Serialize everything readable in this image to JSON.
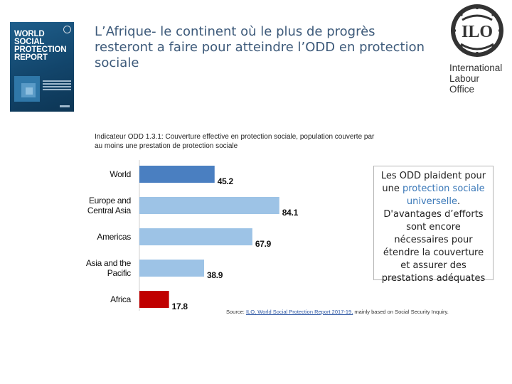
{
  "header": {
    "title": "L’Afrique- le continent où le plus de progrès resteront a faire pour atteindre l’ODD en protection sociale"
  },
  "report_cover": {
    "title_lines": [
      "WORLD",
      "SOCIAL",
      "PROTECTION",
      "REPORT"
    ]
  },
  "logo": {
    "emblem_text": "ILO",
    "org_lines": [
      "International",
      "Labour",
      "Office"
    ]
  },
  "chart_data": {
    "type": "bar",
    "orientation": "horizontal",
    "title": "Indicateur ODD 1.3.1: Couverture effective en protection sociale, population couverte par au moins une prestation de protection sociale",
    "categories": [
      "World",
      "Europe and Central Asia",
      "Americas",
      "Asia and the Pacific",
      "Africa"
    ],
    "category_lines": [
      [
        "World"
      ],
      [
        "Europe and",
        "Central Asia"
      ],
      [
        "Americas"
      ],
      [
        "Asia and the",
        "Pacific"
      ],
      [
        "Africa"
      ]
    ],
    "values": [
      45.2,
      84.1,
      67.9,
      38.9,
      17.8
    ],
    "value_labels": [
      "45.2",
      "84.1",
      "67.9",
      "38.9",
      "17.8"
    ],
    "colors": [
      "#4a7fc1",
      "#9dc3e6",
      "#9dc3e6",
      "#9dc3e6",
      "#c00000"
    ],
    "xlim": [
      0,
      100
    ],
    "xlabel": "",
    "ylabel": "",
    "grid": false
  },
  "callout": {
    "text_before": "Les ODD plaident pour une ",
    "highlight": "protection sociale universelle",
    "text_after": ". D'avantages d’efforts sont encore nécessaires pour étendre la couverture et assurer des prestations adéquates"
  },
  "source": {
    "prefix": "Source: ",
    "link_text": "ILO, World Social Protection Report 2017-19,",
    "suffix": " mainly based on Social Security Inquiry."
  }
}
